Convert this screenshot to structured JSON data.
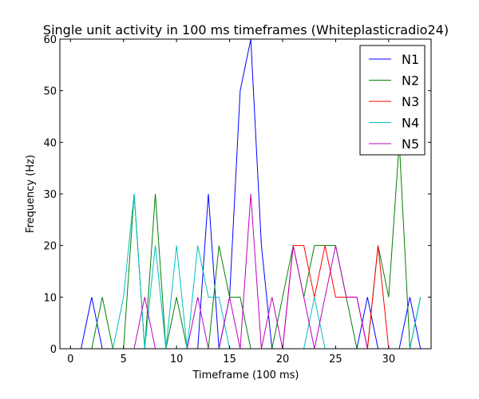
{
  "chart_data": {
    "type": "line",
    "title": "Single unit activity in 100 ms timeframes (Whiteplasticradio24)",
    "xlabel": "Timeframe (100 ms)",
    "ylabel": "Frequency (Hz)",
    "xlim": [
      -1,
      34
    ],
    "ylim": [
      0,
      60
    ],
    "xticks": [
      0,
      5,
      10,
      15,
      20,
      25,
      30
    ],
    "yticks": [
      0,
      10,
      20,
      30,
      40,
      50,
      60
    ],
    "grid": false,
    "legend_position": "top-right",
    "x": [
      0,
      1,
      2,
      3,
      4,
      5,
      6,
      7,
      8,
      9,
      10,
      11,
      12,
      13,
      14,
      15,
      16,
      17,
      18,
      19,
      20,
      21,
      22,
      23,
      24,
      25,
      26,
      27,
      28,
      29,
      30,
      31,
      32,
      33
    ],
    "series": [
      {
        "name": "N1",
        "color": "#0000ff",
        "values": [
          0,
          0,
          10,
          0,
          0,
          0,
          0,
          0,
          0,
          0,
          0,
          0,
          0,
          30,
          0,
          10,
          50,
          60,
          20,
          0,
          0,
          0,
          0,
          0,
          0,
          0,
          0,
          0,
          10,
          0,
          0,
          0,
          10,
          0
        ]
      },
      {
        "name": "N2",
        "color": "#008000",
        "values": [
          0,
          0,
          0,
          10,
          0,
          0,
          30,
          0,
          30,
          0,
          10,
          0,
          0,
          0,
          20,
          10,
          10,
          0,
          0,
          0,
          10,
          20,
          10,
          20,
          20,
          20,
          10,
          0,
          0,
          20,
          10,
          40,
          0,
          10
        ]
      },
      {
        "name": "N3",
        "color": "#ff0000",
        "values": [
          0,
          0,
          0,
          0,
          0,
          0,
          0,
          0,
          0,
          0,
          0,
          0,
          0,
          0,
          0,
          0,
          0,
          0,
          0,
          0,
          0,
          20,
          20,
          10,
          20,
          10,
          10,
          10,
          0,
          20,
          0,
          0,
          0,
          0
        ]
      },
      {
        "name": "N4",
        "color": "#00bfbf",
        "values": [
          0,
          0,
          0,
          0,
          0,
          10,
          30,
          0,
          20,
          0,
          20,
          0,
          20,
          10,
          10,
          0,
          0,
          0,
          0,
          0,
          0,
          0,
          0,
          10,
          0,
          0,
          0,
          0,
          0,
          0,
          0,
          0,
          0,
          10
        ]
      },
      {
        "name": "N5",
        "color": "#bf00bf",
        "values": [
          0,
          0,
          0,
          0,
          0,
          0,
          0,
          10,
          0,
          0,
          0,
          0,
          10,
          0,
          0,
          10,
          0,
          30,
          0,
          10,
          0,
          20,
          10,
          0,
          10,
          20,
          10,
          10,
          0,
          0,
          0,
          0,
          0,
          0
        ]
      }
    ]
  }
}
